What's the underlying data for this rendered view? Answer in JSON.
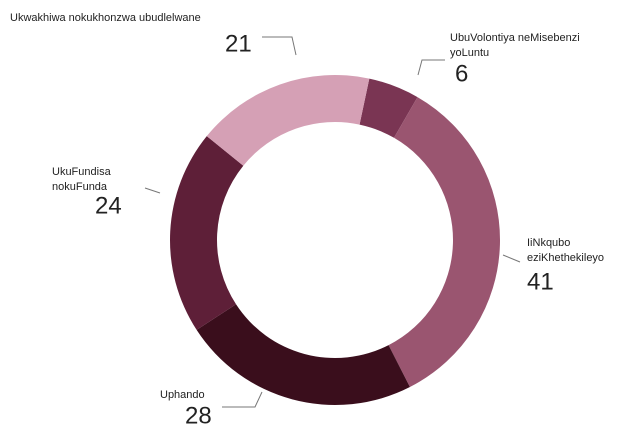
{
  "chart_data": {
    "type": "donut",
    "categories": [
      [
        "UbuVolontiya neMisebenzi",
        "yoLuntu"
      ],
      [
        "IiNkqubo",
        "eziKhethekileyo"
      ],
      [
        "Uphando"
      ],
      [
        "UkuFundisa",
        "nokuFunda"
      ],
      [
        "Ukwakhiwa nokukhonzwa ubudlelwane"
      ]
    ],
    "values": [
      6,
      41,
      28,
      24,
      21
    ],
    "colors": [
      "#7a3553",
      "#9a5570",
      "#3a0e1c",
      "#5e1f38",
      "#d5a0b5"
    ]
  }
}
